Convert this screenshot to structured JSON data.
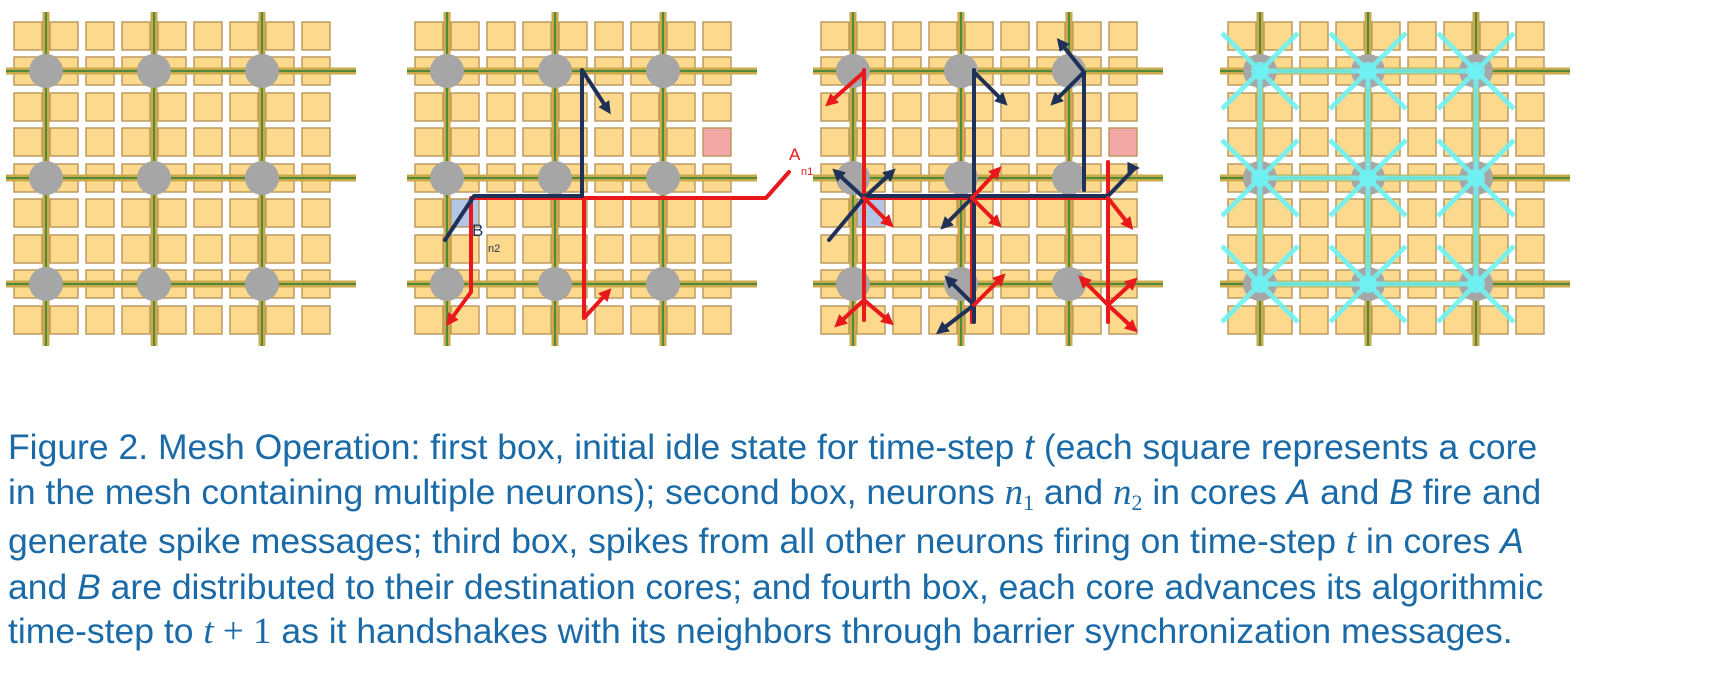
{
  "figure": {
    "panels": [
      {
        "id": "idle",
        "label_a": "",
        "label_b": ""
      },
      {
        "id": "fire",
        "label_a": "A",
        "label_a_sub": "n1",
        "label_b": "B",
        "label_b_sub": "n2"
      },
      {
        "id": "distribute",
        "label_a": "",
        "label_b": ""
      },
      {
        "id": "barrier",
        "label_a": "",
        "label_b": ""
      }
    ],
    "colors": {
      "core_fill": "#fcd98c",
      "core_border": "#b8955a",
      "router": "#a6a6a6",
      "wire_outer": "#c9a94a",
      "wire_inner": "#4f8a3c",
      "spike_red": "#e8181b",
      "spike_navy": "#1f3158",
      "core_a_fill": "#f4a7a7",
      "core_b_fill": "#b3c6e6",
      "barrier": "#6ff2f2",
      "caption": "#1a6aa8"
    }
  },
  "caption": {
    "l1_a": "Figure 2. Mesh Operation: first box, initial idle state for time-step ",
    "l1_t": "t",
    "l1_b": " (each square represents a core",
    "l2_a": "in the mesh containing multiple neurons); second box, neurons ",
    "l2_n1": "n",
    "l2_n1_sub": "1",
    "l2_and": " and ",
    "l2_n2": "n",
    "l2_n2_sub": "2",
    "l2_b": " in cores ",
    "l2_A": "A",
    "l2_c": " and ",
    "l2_B": "B",
    "l2_d": " fire and",
    "l3_a": "generate spike messages; third box, spikes from all other neurons firing on time-step ",
    "l3_t": "t",
    "l3_b": " in cores ",
    "l3_A": "A",
    "l4_a": "and ",
    "l4_B": "B",
    "l4_b": " are distributed to their destination cores; and fourth box, each core advances its algorithmic",
    "l5_a": "time-step to ",
    "l5_t": "t",
    "l5_plus": " + 1",
    "l5_b": " as it handshakes with its neighbors through barrier synchronization messages."
  }
}
